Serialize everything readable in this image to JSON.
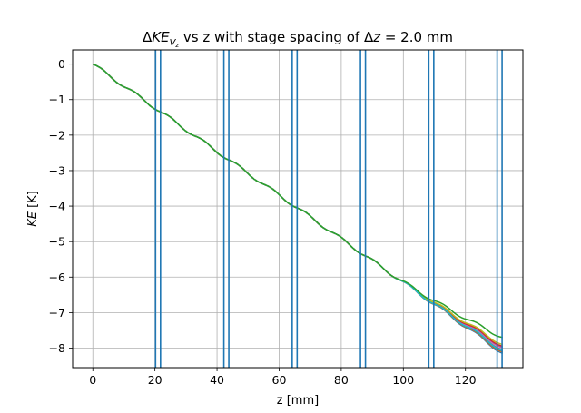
{
  "chart_data": {
    "type": "line",
    "title": "ΔKE_{V_z} vs z with stage spacing of Δz = 2.0 mm",
    "title_parts": {
      "delta": "Δ",
      "ke": "KE",
      "sub_v": "V",
      "sub_z": "z",
      "middle": " vs z with stage spacing of ",
      "delta2": "Δ",
      "dz": "z",
      "tail": " = 2.0 mm"
    },
    "xlabel": "z [mm]",
    "ylabel": "KE [K]",
    "ylabel_parts": {
      "ke": "KE",
      "unit": " [K]"
    },
    "xlim": [
      -6.5,
      138.5
    ],
    "ylim": [
      -8.55,
      0.4
    ],
    "xticks": [
      0,
      20,
      40,
      60,
      80,
      100,
      120
    ],
    "yticks": [
      0,
      -1,
      -2,
      -3,
      -4,
      -5,
      -6,
      -7,
      -8
    ],
    "grid": true,
    "legend": "none",
    "stage_lines": {
      "color": "#1f77b4",
      "x": [
        20.2,
        21.8,
        42.2,
        43.8,
        64.2,
        65.8,
        86.2,
        87.8,
        108.2,
        109.8,
        130.2,
        131.8
      ]
    },
    "series_curve": {
      "z_max": 132.0,
      "slope_per_mm": -0.0615,
      "wiggle_period": 11,
      "wiggle_amplitude": 0.045
    },
    "series": [
      {
        "color": "#1f77b4",
        "final_value": -8.15
      },
      {
        "color": "#ff7f0e",
        "final_value": -8.12
      },
      {
        "color": "#8c564b",
        "final_value": -8.1
      },
      {
        "color": "#7f7f7f",
        "final_value": -8.05
      },
      {
        "color": "#e377c2",
        "final_value": -8.0
      },
      {
        "color": "#9467bd",
        "final_value": -7.98
      },
      {
        "color": "#d62728",
        "final_value": -7.95
      },
      {
        "color": "#bcbd22",
        "final_value": -7.9
      },
      {
        "color": "#17becf",
        "final_value": -8.08
      },
      {
        "color": "#2ca02c",
        "final_value": -7.7
      }
    ]
  }
}
